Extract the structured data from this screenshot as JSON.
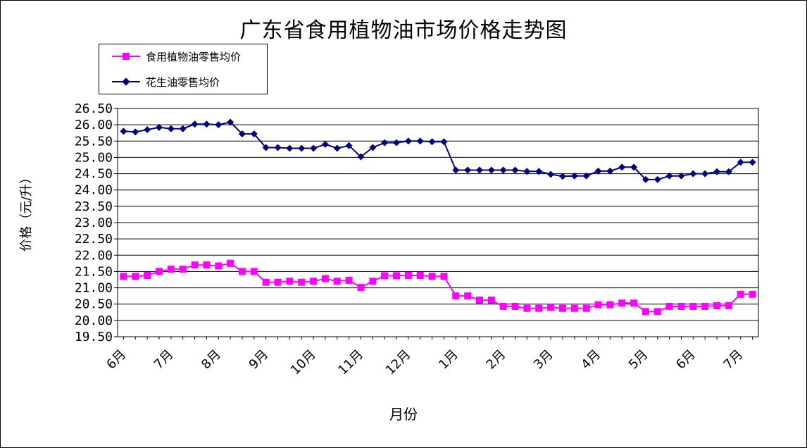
{
  "chart_data": {
    "type": "line",
    "title": "广东省食用植物油市场价格走势图",
    "xlabel": "月份",
    "ylabel": "价格（元/升）",
    "ylim": [
      19.5,
      26.5
    ],
    "ytick_step": 0.5,
    "yticks": [
      "19.50",
      "20.00",
      "20.50",
      "21.00",
      "21.50",
      "22.00",
      "22.50",
      "23.00",
      "23.50",
      "24.00",
      "24.50",
      "25.00",
      "25.50",
      "26.00",
      "26.50"
    ],
    "grid": true,
    "legend_position": "top-left",
    "month_ticks": [
      {
        "label": "6月",
        "index": 0
      },
      {
        "label": "7月",
        "index": 4
      },
      {
        "label": "8月",
        "index": 8
      },
      {
        "label": "9月",
        "index": 12
      },
      {
        "label": "10月",
        "index": 16
      },
      {
        "label": "11月",
        "index": 20
      },
      {
        "label": "12月",
        "index": 24
      },
      {
        "label": "1月",
        "index": 28
      },
      {
        "label": "2月",
        "index": 32
      },
      {
        "label": "3月",
        "index": 36
      },
      {
        "label": "4月",
        "index": 40
      },
      {
        "label": "5月",
        "index": 44
      },
      {
        "label": "6月",
        "index": 48
      },
      {
        "label": "7月",
        "index": 52
      }
    ],
    "series": [
      {
        "name": "食用植物油零售均价",
        "color": "#ff00ff",
        "marker": "square",
        "values": [
          21.35,
          21.35,
          21.38,
          21.5,
          21.57,
          21.57,
          21.7,
          21.7,
          21.67,
          21.75,
          21.5,
          21.5,
          21.17,
          21.17,
          21.2,
          21.17,
          21.2,
          21.28,
          21.2,
          21.23,
          21.01,
          21.2,
          21.37,
          21.37,
          21.38,
          21.38,
          21.35,
          21.35,
          20.75,
          20.75,
          20.62,
          20.62,
          20.43,
          20.43,
          20.37,
          20.37,
          20.4,
          20.37,
          20.37,
          20.37,
          20.48,
          20.48,
          20.53,
          20.53,
          20.27,
          20.27,
          20.43,
          20.43,
          20.43,
          20.43,
          20.45,
          20.45,
          20.8,
          20.8
        ]
      },
      {
        "name": "花生油零售均价",
        "color": "#000080",
        "marker": "diamond",
        "values": [
          25.8,
          25.78,
          25.85,
          25.92,
          25.88,
          25.88,
          26.02,
          26.02,
          26.0,
          26.08,
          25.72,
          25.72,
          25.3,
          25.3,
          25.28,
          25.28,
          25.28,
          25.4,
          25.28,
          25.36,
          25.02,
          25.3,
          25.45,
          25.45,
          25.5,
          25.5,
          25.48,
          25.48,
          24.61,
          24.61,
          24.61,
          24.61,
          24.61,
          24.61,
          24.57,
          24.57,
          24.48,
          24.42,
          24.43,
          24.43,
          24.58,
          24.58,
          24.7,
          24.7,
          24.32,
          24.32,
          24.43,
          24.43,
          24.5,
          24.5,
          24.56,
          24.56,
          24.85,
          24.85
        ]
      }
    ]
  }
}
